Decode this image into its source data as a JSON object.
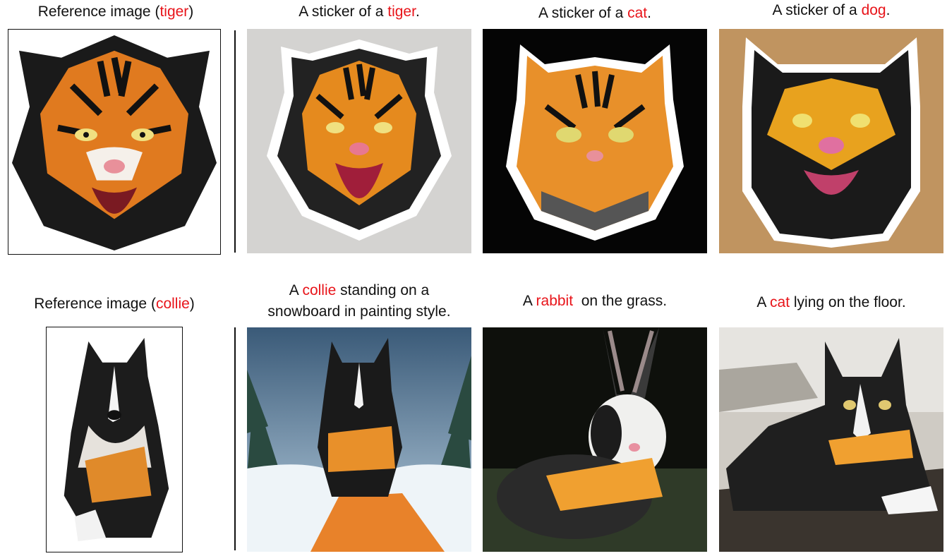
{
  "row1": {
    "captions": [
      {
        "pre": "Reference image (",
        "hl": "tiger",
        "post": ")"
      },
      {
        "pre": "A sticker of a ",
        "hl": "tiger",
        "post": "."
      },
      {
        "pre": "A sticker of a ",
        "hl": "cat",
        "post": "."
      },
      {
        "pre": "A sticker of a ",
        "hl": "dog",
        "post": "."
      }
    ]
  },
  "row2": {
    "captions": [
      {
        "pre": "Reference image (",
        "hl": "collie",
        "post": ")"
      },
      {
        "pre": "A ",
        "hl": "collie",
        "post": " standing on a",
        "line2": "snowboard in painting style."
      },
      {
        "pre": "A ",
        "hl": "rabbit",
        "post": "  on the grass."
      },
      {
        "pre": "A ",
        "hl": "cat",
        "post": " lying on the floor."
      }
    ]
  },
  "colors": {
    "highlight": "#e8141a",
    "tiger_orange": "#e07a1f",
    "vest_orange": "#f0a030"
  },
  "icons": [
    "tiger-sticker-image",
    "cat-sticker-image",
    "dog-sticker-image",
    "collie-image",
    "snowboard-collie-image",
    "rabbit-image",
    "cat-floor-image"
  ]
}
